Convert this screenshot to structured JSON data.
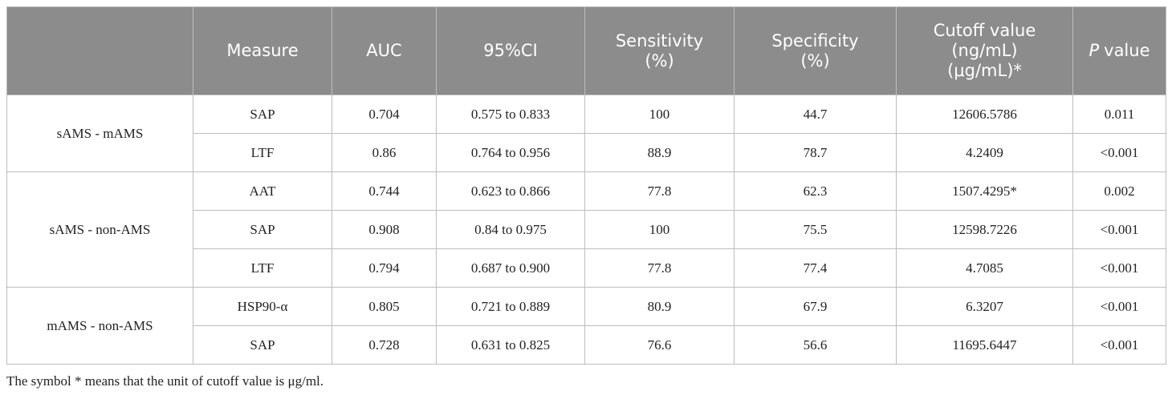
{
  "table": {
    "header": [
      "Measure",
      "AUC",
      "95%CI",
      [
        "Sensitivity",
        "(%)"
      ],
      [
        "Specificity",
        "(%)"
      ],
      [
        "Cutoff value",
        "(ng/mL)",
        "(μg/mL)*"
      ],
      {
        "italic": "P",
        "rest": "value"
      }
    ],
    "groups": [
      {
        "label": "sAMS - mAMS",
        "rows": [
          [
            "SAP",
            "0.704",
            "0.575 to 0.833",
            "100",
            "44.7",
            "12606.5786",
            "0.011"
          ],
          [
            "LTF",
            "0.86",
            "0.764 to 0.956",
            "88.9",
            "78.7",
            "4.2409",
            "<0.001"
          ]
        ]
      },
      {
        "label": "sAMS - non-AMS",
        "rows": [
          [
            "AAT",
            "0.744",
            "0.623 to 0.866",
            "77.8",
            "62.3",
            "1507.4295*",
            "0.002"
          ],
          [
            "SAP",
            "0.908",
            "0.84 to 0.975",
            "100",
            "75.5",
            "12598.7226",
            "<0.001"
          ],
          [
            "LTF",
            "0.794",
            "0.687 to 0.900",
            "77.8",
            "77.4",
            "4.7085",
            "<0.001"
          ]
        ]
      },
      {
        "label": "mAMS - non-AMS",
        "rows": [
          [
            "HSP90-α",
            "0.805",
            "0.721 to 0.889",
            "80.9",
            "67.9",
            "6.3207",
            "<0.001"
          ],
          [
            "SAP",
            "0.728",
            "0.631 to 0.825",
            "76.6",
            "56.6",
            "11695.6447",
            "<0.001"
          ]
        ]
      }
    ]
  },
  "footnote": "The symbol * means that the unit of cutoff value is μg/ml."
}
